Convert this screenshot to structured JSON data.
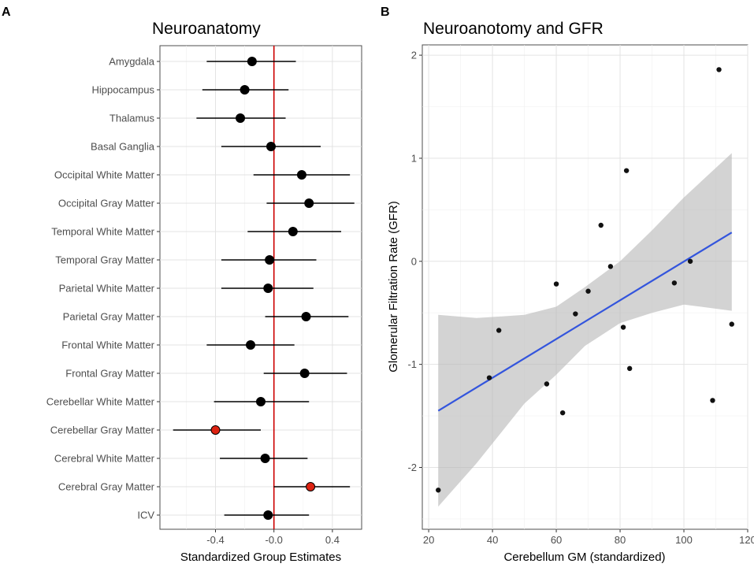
{
  "chart_data": [
    {
      "panel": "A",
      "type": "forest",
      "title": "Neuroanatomy",
      "xlabel": "Standardized Group Estimates",
      "ylabel": "",
      "xlim": [
        -0.78,
        0.6
      ],
      "xticks": [
        -0.4,
        0.0,
        0.4
      ],
      "xtick_labels": [
        "-0.4",
        "-0.0",
        "0.4"
      ],
      "reference_line": 0,
      "reference_line_color": "#cc0000",
      "grid": true,
      "colors": {
        "default": "#000000",
        "significant": "#dd2211"
      },
      "rows": [
        {
          "label": "Amygdala",
          "estimate": -0.15,
          "lower": -0.46,
          "upper": 0.15,
          "significant": false
        },
        {
          "label": "Hippocampus",
          "estimate": -0.2,
          "lower": -0.49,
          "upper": 0.1,
          "significant": false
        },
        {
          "label": "Thalamus",
          "estimate": -0.23,
          "lower": -0.53,
          "upper": 0.08,
          "significant": false
        },
        {
          "label": "Basal Ganglia",
          "estimate": -0.02,
          "lower": -0.36,
          "upper": 0.32,
          "significant": false
        },
        {
          "label": "Occipital White Matter",
          "estimate": 0.19,
          "lower": -0.14,
          "upper": 0.52,
          "significant": false
        },
        {
          "label": "Occipital Gray Matter",
          "estimate": 0.24,
          "lower": -0.05,
          "upper": 0.55,
          "significant": false
        },
        {
          "label": "Temporal White Matter",
          "estimate": 0.13,
          "lower": -0.18,
          "upper": 0.46,
          "significant": false
        },
        {
          "label": "Temporal Gray Matter",
          "estimate": -0.03,
          "lower": -0.36,
          "upper": 0.29,
          "significant": false
        },
        {
          "label": "Parietal White Matter",
          "estimate": -0.04,
          "lower": -0.36,
          "upper": 0.27,
          "significant": false
        },
        {
          "label": "Parietal Gray Matter",
          "estimate": 0.22,
          "lower": -0.06,
          "upper": 0.51,
          "significant": false
        },
        {
          "label": "Frontal White Matter",
          "estimate": -0.16,
          "lower": -0.46,
          "upper": 0.14,
          "significant": false
        },
        {
          "label": "Frontal Gray Matter",
          "estimate": 0.21,
          "lower": -0.07,
          "upper": 0.5,
          "significant": false
        },
        {
          "label": "Cerebellar White Matter",
          "estimate": -0.09,
          "lower": -0.41,
          "upper": 0.24,
          "significant": false
        },
        {
          "label": "Cerebellar Gray Matter",
          "estimate": -0.4,
          "lower": -0.69,
          "upper": -0.09,
          "significant": true
        },
        {
          "label": "Cerebral White Matter",
          "estimate": -0.06,
          "lower": -0.37,
          "upper": 0.23,
          "significant": false
        },
        {
          "label": "Cerebral Gray Matter",
          "estimate": 0.25,
          "lower": 0.0,
          "upper": 0.52,
          "significant": true
        },
        {
          "label": "ICV",
          "estimate": -0.04,
          "lower": -0.34,
          "upper": 0.24,
          "significant": false
        }
      ]
    },
    {
      "panel": "B",
      "type": "scatter",
      "title": "Neuroanotomy and GFR",
      "xlabel": "Cerebellum GM (standardized)",
      "ylabel": "Glomerular Filtration Rate (GFR)",
      "xlim": [
        18,
        120
      ],
      "ylim": [
        -2.6,
        2.1
      ],
      "xticks": [
        20,
        40,
        60,
        80,
        100,
        120
      ],
      "yticks": [
        -2,
        -1,
        0,
        1,
        2
      ],
      "grid": true,
      "colors": {
        "points": "#111111",
        "fit_line": "#3355dd",
        "confidence_band": "#b8b8b8"
      },
      "points": [
        {
          "x": 23,
          "y": -2.22
        },
        {
          "x": 39,
          "y": -1.13
        },
        {
          "x": 42,
          "y": -0.67
        },
        {
          "x": 57,
          "y": -1.19
        },
        {
          "x": 60,
          "y": -0.22
        },
        {
          "x": 62,
          "y": -1.47
        },
        {
          "x": 66,
          "y": -0.51
        },
        {
          "x": 70,
          "y": -0.29
        },
        {
          "x": 74,
          "y": 0.35
        },
        {
          "x": 77,
          "y": -0.05
        },
        {
          "x": 81,
          "y": -0.64
        },
        {
          "x": 82,
          "y": 0.88
        },
        {
          "x": 83,
          "y": -1.04
        },
        {
          "x": 97,
          "y": -0.21
        },
        {
          "x": 102,
          "y": 0.0
        },
        {
          "x": 109,
          "y": -1.35
        },
        {
          "x": 111,
          "y": 1.86
        },
        {
          "x": 115,
          "y": -0.61
        }
      ],
      "fit": {
        "x_start": 23,
        "y_start": -1.45,
        "x_end": 115,
        "y_end": 0.28
      },
      "confidence_band": [
        {
          "x": 23,
          "lower": -2.38,
          "upper": -0.52
        },
        {
          "x": 35,
          "lower": -1.96,
          "upper": -0.55
        },
        {
          "x": 50,
          "lower": -1.38,
          "upper": -0.52
        },
        {
          "x": 60,
          "lower": -1.1,
          "upper": -0.44
        },
        {
          "x": 69,
          "lower": -0.82,
          "upper": -0.25
        },
        {
          "x": 80,
          "lower": -0.6,
          "upper": 0.0
        },
        {
          "x": 90,
          "lower": -0.5,
          "upper": 0.3
        },
        {
          "x": 100,
          "lower": -0.42,
          "upper": 0.62
        },
        {
          "x": 115,
          "lower": -0.48,
          "upper": 1.05
        }
      ]
    }
  ]
}
